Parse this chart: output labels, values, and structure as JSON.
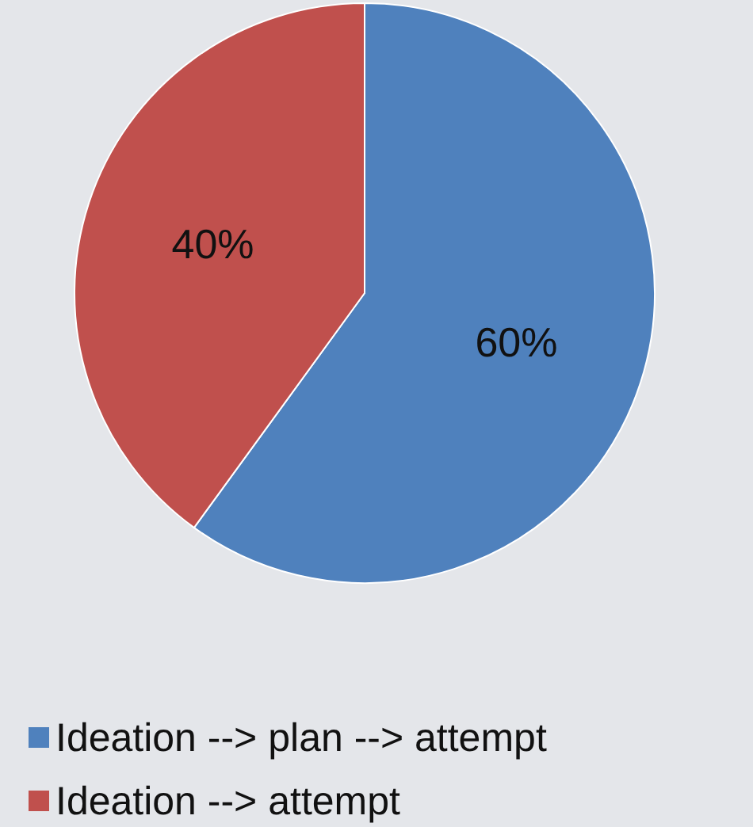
{
  "chart_data": {
    "type": "pie",
    "categories": [
      "Ideation --> plan --> attempt",
      "Ideation --> attempt"
    ],
    "values": [
      60,
      40
    ],
    "colors": [
      "#4f81bd",
      "#c0504d"
    ],
    "value_labels": [
      "60%",
      "40%"
    ],
    "legend": "bottom"
  }
}
